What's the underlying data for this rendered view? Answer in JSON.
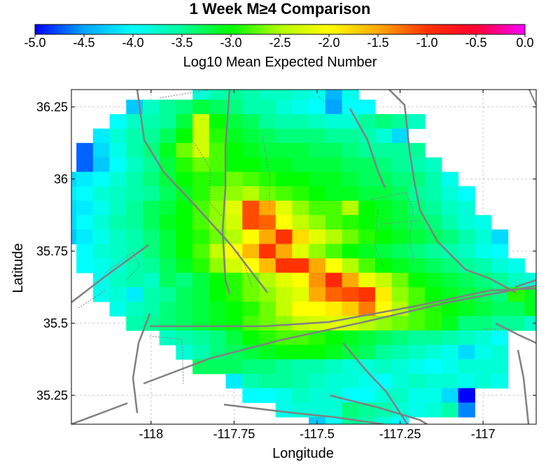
{
  "chart_data": {
    "type": "heatmap",
    "title": "1 Week M≥4 Comparison",
    "colorbar": {
      "label": "Log10 Mean Expected Number",
      "range": [
        -5.0,
        0.0
      ],
      "ticks": [
        "-5.0",
        "-4.5",
        "-4.0",
        "-3.5",
        "-3.0",
        "-2.5",
        "-2.0",
        "-1.5",
        "-1.0",
        "-0.5",
        "0.0"
      ],
      "colors": [
        "#0000ff",
        "#00a5ff",
        "#00ffff",
        "#00ff99",
        "#00ff00",
        "#b4ff00",
        "#ffff00",
        "#ffaa00",
        "#ff3300",
        "#ff0033",
        "#ff00ff"
      ]
    },
    "xlabel": "Longitude",
    "ylabel": "Latitude",
    "xlim": [
      -118.24,
      -116.84
    ],
    "ylim": [
      35.15,
      36.31
    ],
    "x_ticks": [
      -118,
      -117.75,
      -117.5,
      -117.25,
      -117
    ],
    "x_tick_labels": [
      "-118",
      "-117.75",
      "-117.5",
      "-117.25",
      "-117"
    ],
    "y_ticks": [
      36.25,
      36,
      35.75,
      35.5,
      35.25
    ],
    "y_tick_labels": [
      "36.25",
      "36",
      "35.75",
      "35.5",
      "35.25"
    ],
    "grid": true,
    "cell_size_deg": 0.05,
    "rows": [
      {
        "lat": 36.3,
        "start": -117.85,
        "values": [
          -3.8,
          -3.6,
          -3.5,
          -3.6,
          -3.7,
          -3.7,
          -3.8,
          -3.9,
          -4.4,
          -3.9
        ]
      },
      {
        "lat": 36.25,
        "start": -118.05,
        "values": [
          -4.3,
          -3.7,
          -3.5,
          -3.4,
          -3.2,
          -3.3,
          -3.4,
          -3.6,
          -3.6,
          -3.8,
          -3.9,
          -4.0,
          -4.5,
          -4.0,
          -4.0
        ]
      },
      {
        "lat": 36.2,
        "start": -118.1,
        "values": [
          -4.0,
          -3.7,
          -3.6,
          -3.5,
          -3.2,
          -2.3,
          -3.0,
          -3.2,
          -3.3,
          -3.5,
          -3.6,
          -3.6,
          -3.7,
          -3.8,
          -3.8,
          -3.5,
          -3.4,
          -3.5,
          -3.7
        ]
      },
      {
        "lat": 36.15,
        "start": -118.15,
        "values": [
          -4.1,
          -3.8,
          -3.6,
          -3.5,
          -3.3,
          -3.0,
          -2.3,
          -2.9,
          -3.1,
          -3.2,
          -3.3,
          -3.4,
          -3.4,
          -3.4,
          -3.5,
          -3.5,
          -3.6,
          -3.8,
          -4.2
        ]
      },
      {
        "lat": 36.1,
        "start": -118.2,
        "values": [
          -4.7,
          -4.2,
          -3.9,
          -3.6,
          -3.4,
          -3.1,
          -2.7,
          -2.3,
          -2.8,
          -3.0,
          -3.1,
          -3.2,
          -3.2,
          -3.2,
          -3.3,
          -3.3,
          -3.4,
          -3.5,
          -3.5,
          -3.5,
          -3.5
        ]
      },
      {
        "lat": 36.05,
        "start": -118.2,
        "values": [
          -4.7,
          -4.3,
          -4.0,
          -3.7,
          -3.5,
          -3.2,
          -2.9,
          -2.7,
          -2.8,
          -3.0,
          -3.0,
          -3.1,
          -3.1,
          -3.2,
          -3.2,
          -3.2,
          -3.3,
          -3.3,
          -3.4,
          -3.5,
          -3.6,
          -3.7
        ]
      },
      {
        "lat": 36.0,
        "start": -118.25,
        "values": [
          -4.2,
          -4.1,
          -4.0,
          -3.8,
          -3.6,
          -3.4,
          -3.2,
          -3.0,
          -2.9,
          -2.9,
          -2.7,
          -2.8,
          -2.9,
          -3.0,
          -3.0,
          -3.1,
          -3.1,
          -3.2,
          -3.3,
          -3.3,
          -3.4,
          -3.4,
          -3.6,
          -3.9
        ]
      },
      {
        "lat": 35.95,
        "start": -118.25,
        "values": [
          -4.1,
          -4.0,
          -3.8,
          -3.7,
          -3.6,
          -3.5,
          -3.3,
          -3.1,
          -2.9,
          -2.7,
          -2.6,
          -2.5,
          -2.7,
          -2.8,
          -2.9,
          -3.0,
          -3.1,
          -3.1,
          -3.2,
          -3.2,
          -3.3,
          -3.5,
          -3.6,
          -3.8,
          -4.0
        ]
      },
      {
        "lat": 35.9,
        "start": -118.25,
        "values": [
          -4.2,
          -4.1,
          -3.9,
          -3.7,
          -3.5,
          -3.3,
          -3.2,
          -3.0,
          -2.8,
          -2.6,
          -2.2,
          -1.1,
          -1.5,
          -2.2,
          -2.6,
          -2.8,
          -2.8,
          -2.5,
          -3.0,
          -3.1,
          -3.2,
          -3.4,
          -3.5,
          -3.7,
          -3.8
        ]
      },
      {
        "lat": 35.85,
        "start": -118.25,
        "values": [
          -4.2,
          -4.0,
          -3.8,
          -3.6,
          -3.5,
          -3.3,
          -3.1,
          -3.0,
          -2.8,
          -2.6,
          -2.3,
          -1.1,
          -1.2,
          -2.0,
          -2.4,
          -2.6,
          -2.8,
          -2.9,
          -3.0,
          -3.1,
          -3.2,
          -3.3,
          -3.4,
          -3.6,
          -3.8,
          -3.9
        ]
      },
      {
        "lat": 35.8,
        "start": -118.25,
        "values": [
          -4.3,
          -4.1,
          -3.9,
          -3.7,
          -3.6,
          -3.4,
          -3.2,
          -3.0,
          -2.9,
          -2.7,
          -2.5,
          -2.0,
          -1.5,
          -1.0,
          -1.8,
          -2.2,
          -2.5,
          -2.7,
          -2.9,
          -3.0,
          -3.1,
          -3.2,
          -3.3,
          -3.4,
          -3.6,
          -3.8,
          -4.2
        ]
      },
      {
        "lat": 35.75,
        "start": -118.2,
        "values": [
          -4.0,
          -3.8,
          -3.7,
          -3.6,
          -3.4,
          -3.2,
          -3.0,
          -2.8,
          -2.4,
          -2.0,
          -1.6,
          -1.0,
          -1.5,
          -2.2,
          -2.6,
          -2.8,
          -3.0,
          -3.1,
          -3.2,
          -3.3,
          -3.4,
          -3.5,
          -3.6,
          -3.7,
          -3.9,
          -4.0
        ]
      },
      {
        "lat": 35.7,
        "start": -118.2,
        "values": [
          -4.0,
          -3.9,
          -3.8,
          -3.6,
          -3.5,
          -3.3,
          -3.1,
          -2.9,
          -2.6,
          -2.3,
          -2.0,
          -1.6,
          -1.0,
          -1.0,
          -1.5,
          -2.0,
          -2.5,
          -2.8,
          -3.0,
          -3.1,
          -3.2,
          -3.3,
          -3.4,
          -3.5,
          -3.6,
          -3.8,
          -3.9
        ]
      },
      {
        "lat": 35.65,
        "start": -118.15,
        "values": [
          -3.9,
          -3.7,
          -3.6,
          -3.7,
          -3.3,
          -3.4,
          -3.2,
          -3.0,
          -2.9,
          -2.7,
          -2.5,
          -2.2,
          -2.0,
          -1.4,
          -0.9,
          -1.5,
          -2.1,
          -2.4,
          -2.7,
          -3.0,
          -3.1,
          -3.2,
          -3.3,
          -3.4,
          -3.5,
          -3.7,
          -3.8
        ]
      },
      {
        "lat": 35.6,
        "start": -118.15,
        "values": [
          -3.9,
          -3.8,
          -4.1,
          -3.6,
          -3.5,
          -3.3,
          -3.2,
          -3.0,
          -2.9,
          -2.7,
          -2.6,
          -2.4,
          -2.2,
          -1.5,
          -1.2,
          -1.1,
          -1.0,
          -1.9,
          -2.6,
          -2.8,
          -3.0,
          -3.1,
          -3.2,
          -3.3,
          -3.4,
          -2.9,
          -3.1
        ]
      },
      {
        "lat": 35.55,
        "start": -118.1,
        "values": [
          -3.9,
          -3.7,
          -3.6,
          -3.4,
          -3.3,
          -3.2,
          -3.1,
          -3.0,
          -2.9,
          -2.7,
          -2.4,
          -2.0,
          -2.0,
          -1.9,
          -1.7,
          -1.3,
          -2.0,
          -2.5,
          -2.8,
          -2.9,
          -3.0,
          -3.1,
          -3.2,
          -3.3,
          -3.3,
          -3.1
        ]
      },
      {
        "lat": 35.5,
        "start": -118.05,
        "values": [
          -3.6,
          -3.5,
          -3.4,
          -3.3,
          -3.2,
          -3.1,
          -3.0,
          -2.8,
          -2.7,
          -2.6,
          -2.4,
          -2.3,
          -2.2,
          -2.3,
          -2.5,
          -2.6,
          -2.7,
          -2.8,
          -2.9,
          -3.1,
          -3.4,
          -3.4,
          -3.5,
          -3.5,
          -3.7
        ]
      },
      {
        "lat": 35.45,
        "start": -117.95,
        "values": [
          -3.7,
          -3.6,
          -3.5,
          -3.4,
          -3.2,
          -3.0,
          -2.9,
          -2.8,
          -2.8,
          -2.9,
          -3.0,
          -3.1,
          -3.2,
          -3.3,
          -3.4,
          -3.5,
          -3.5,
          -3.6,
          -3.7,
          -3.8,
          -4.0
        ]
      },
      {
        "lat": 35.4,
        "start": -117.9,
        "values": [
          -3.8,
          -3.6,
          -3.4,
          -3.3,
          -3.2,
          -3.1,
          -3.0,
          -3.0,
          -3.0,
          -3.1,
          -3.2,
          -3.3,
          -3.5,
          -3.6,
          -3.7,
          -3.8,
          -3.9,
          -4.2,
          -3.9,
          -3.8
        ]
      },
      {
        "lat": 35.35,
        "start": -117.85,
        "values": [
          -3.3,
          -3.3,
          -3.3,
          -3.4,
          -3.4,
          -3.5,
          -3.6,
          -3.6,
          -3.7,
          -3.8,
          -3.8,
          -3.7,
          -3.8,
          -3.9,
          -4.0,
          -3.9,
          -3.8,
          -3.8,
          -3.8
        ]
      },
      {
        "lat": 35.3,
        "start": -117.75,
        "values": [
          -4.1,
          -3.6,
          -3.5,
          -3.5,
          -3.6,
          -3.7,
          -3.8,
          -3.8,
          -3.9,
          -4.0,
          -3.8,
          -3.7,
          -3.8,
          -3.8,
          -3.9,
          -3.8,
          -3.9
        ]
      },
      {
        "lat": 35.25,
        "start": -117.7,
        "values": [
          -4.0,
          -4.0,
          -3.9,
          -3.7,
          -3.8,
          -3.8,
          -4.0,
          -4.0,
          -3.8,
          -3.7,
          -3.9,
          -3.9,
          -4.2,
          -5.0
        ]
      },
      {
        "lat": 35.2,
        "start": -117.6,
        "values": [
          -3.9,
          -3.8,
          -3.8,
          -3.8,
          -3.4,
          -3.5,
          -3.6,
          -3.8,
          -3.9,
          -3.8,
          -3.6,
          -4.6
        ]
      },
      {
        "lat": 35.15,
        "start": -117.5,
        "values": [
          -4.3,
          -4.0,
          -3.5,
          -3.6,
          -3.8,
          -4.0
        ]
      }
    ]
  }
}
